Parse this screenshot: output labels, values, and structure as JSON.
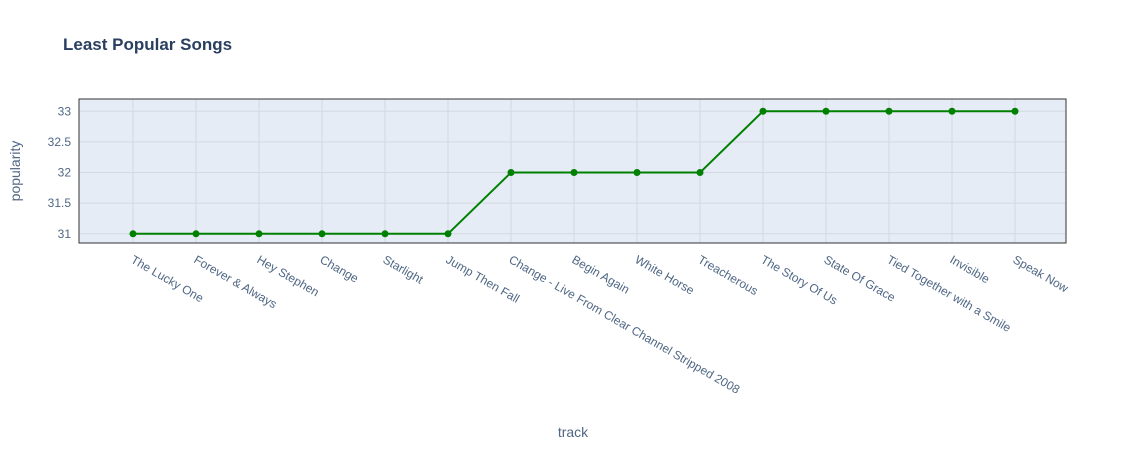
{
  "chart_data": {
    "type": "line",
    "title": "Least Popular Songs",
    "xlabel": "track",
    "ylabel": "popularity",
    "categories": [
      "The Lucky One",
      "Forever & Always",
      "Hey Stephen",
      "Change",
      "Starlight",
      "Jump Then Fall",
      "Change - Live From Clear Channel Stripped 2008",
      "Begin Again",
      "White Horse",
      "Treacherous",
      "The Story Of Us",
      "State Of Grace",
      "Tied Together with a Smile",
      "Invisible",
      "Speak Now"
    ],
    "values": [
      31,
      31,
      31,
      31,
      31,
      31,
      32,
      32,
      32,
      32,
      33,
      33,
      33,
      33,
      33
    ],
    "ylim": [
      30.85,
      33.2
    ],
    "yticks": [
      31,
      31.5,
      32,
      32.5,
      33
    ],
    "ytick_labels": [
      "31",
      "31.5",
      "32",
      "32.5",
      "33"
    ],
    "grid": true,
    "legend": "none",
    "colors": {
      "line": "#008000",
      "plot_background": "#e5ecf6",
      "grid": "#d4d8e0",
      "title": "#2a3f5f",
      "tick": "#506784"
    }
  }
}
